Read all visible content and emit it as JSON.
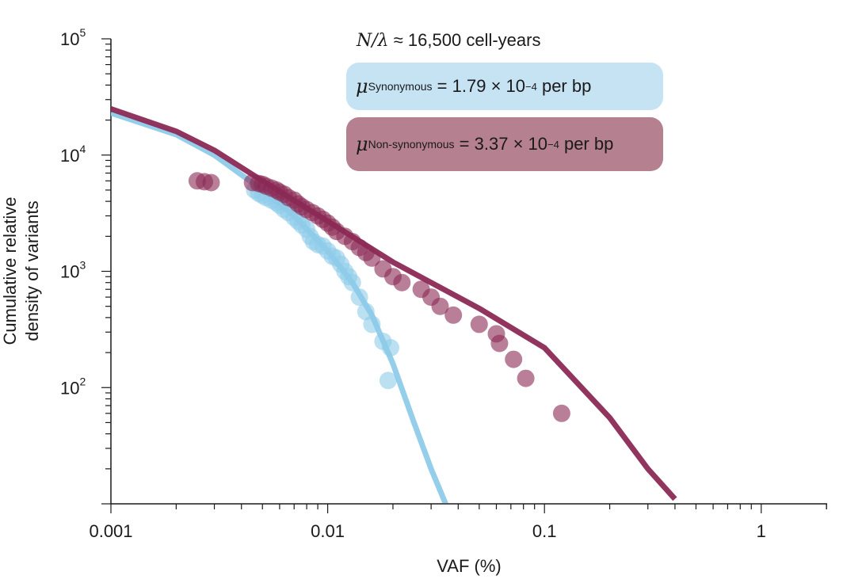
{
  "chart_data": {
    "type": "scatter",
    "xlabel": "VAF (%)",
    "ylabel_lines": [
      "Cumulative relative",
      "density of variants"
    ],
    "x_scale": "log",
    "y_scale": "log",
    "xlim": [
      0.001,
      2
    ],
    "ylim": [
      10,
      100000
    ],
    "x_ticks": [
      {
        "value": 0.001,
        "label": "0.001"
      },
      {
        "value": 0.01,
        "label": "0.01"
      },
      {
        "value": 0.1,
        "label": "0.1"
      },
      {
        "value": 1,
        "label": "1"
      }
    ],
    "y_ticks": [
      {
        "value": 100,
        "base": "10",
        "exp": "2"
      },
      {
        "value": 1000,
        "base": "10",
        "exp": "3"
      },
      {
        "value": 10000,
        "base": "10",
        "exp": "4"
      },
      {
        "value": 100000,
        "base": "10",
        "exp": "5"
      }
    ],
    "annotation": {
      "n_lambda": {
        "symbol": "N/λ",
        "text": "≈ 16,500 cell-years"
      },
      "synonymous": {
        "mu": "μ",
        "sub": "Synonymous",
        "eq": "= 1.79 × 10",
        "exp": "−4",
        "unit": "per bp"
      },
      "nonsynonymous": {
        "mu": "μ",
        "sub": "Non-synonymous",
        "eq": "= 3.37 × 10",
        "exp": "−4",
        "unit": "per bp"
      }
    },
    "colors": {
      "synonymous": "#8ecbea",
      "nonsynonymous": "#8b2a55",
      "syn_box": "#c6e3f4",
      "nonsyn_box": "#b5808f"
    },
    "series": [
      {
        "kind": "fit",
        "class": "synonymous",
        "x": [
          0.001,
          0.002,
          0.003,
          0.005,
          0.007,
          0.01,
          0.013,
          0.016,
          0.02,
          0.025,
          0.03,
          0.035
        ],
        "y": [
          23000,
          15000,
          10000,
          5000,
          3000,
          1500,
          800,
          420,
          160,
          50,
          20,
          10
        ]
      },
      {
        "kind": "fit",
        "class": "nonsynonymous",
        "x": [
          0.001,
          0.002,
          0.003,
          0.005,
          0.01,
          0.02,
          0.05,
          0.1,
          0.2,
          0.3,
          0.4
        ],
        "y": [
          25000,
          16000,
          11000,
          6000,
          2700,
          1200,
          480,
          220,
          55,
          20,
          11
        ]
      },
      {
        "kind": "points",
        "class": "synonymous",
        "x": [
          0.0046,
          0.0048,
          0.005,
          0.0052,
          0.0055,
          0.0058,
          0.006,
          0.0063,
          0.0066,
          0.007,
          0.0073,
          0.0076,
          0.008,
          0.0083,
          0.0086,
          0.009,
          0.0095,
          0.01,
          0.0105,
          0.011,
          0.0115,
          0.012,
          0.0125,
          0.013,
          0.014,
          0.015,
          0.016,
          0.018,
          0.0195,
          0.019
        ],
        "y": [
          5000,
          4700,
          4500,
          4300,
          4100,
          3900,
          3700,
          3400,
          3200,
          2900,
          2700,
          2500,
          2300,
          2000,
          1800,
          1700,
          1650,
          1500,
          1350,
          1300,
          1150,
          1000,
          900,
          800,
          600,
          450,
          350,
          250,
          220,
          115
        ]
      },
      {
        "kind": "points",
        "class": "nonsynonymous",
        "x": [
          0.0025,
          0.0027,
          0.0029,
          0.0045,
          0.0048,
          0.005,
          0.0052,
          0.0055,
          0.0058,
          0.006,
          0.0063,
          0.0066,
          0.007,
          0.0073,
          0.0076,
          0.008,
          0.0085,
          0.009,
          0.0095,
          0.01,
          0.0105,
          0.011,
          0.012,
          0.013,
          0.014,
          0.015,
          0.016,
          0.018,
          0.02,
          0.022,
          0.027,
          0.03,
          0.033,
          0.038,
          0.05,
          0.06,
          0.062,
          0.072,
          0.082,
          0.12
        ],
        "y": [
          6000,
          5900,
          5800,
          5800,
          5700,
          5600,
          5400,
          5200,
          5000,
          4800,
          4600,
          4300,
          4100,
          3800,
          3600,
          3400,
          3200,
          3000,
          2800,
          2600,
          2400,
          2200,
          2000,
          1800,
          1600,
          1450,
          1300,
          1050,
          900,
          800,
          700,
          600,
          500,
          420,
          350,
          290,
          240,
          175,
          120,
          60
        ]
      }
    ]
  }
}
